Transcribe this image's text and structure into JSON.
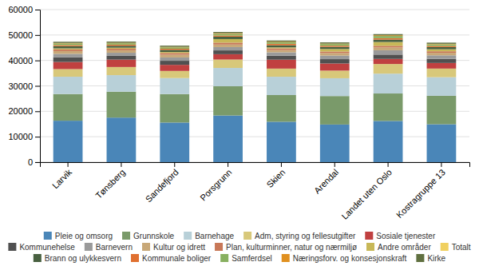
{
  "chart_data": {
    "type": "bar",
    "stacked": true,
    "categories": [
      "Larvik",
      "Tønsberg",
      "Sandefjord",
      "Porsgrunn",
      "Skien",
      "Arendal",
      "Landet uten Oslo",
      "Kostragruppe 13"
    ],
    "series": [
      {
        "name": "Pleie og omsorg",
        "color": "#4A86B8",
        "values": [
          16290,
          17518,
          15570,
          18348,
          15886,
          14800,
          16200,
          14900
        ]
      },
      {
        "name": "Grunnskole",
        "color": "#7A9A6A",
        "values": [
          10500,
          10200,
          11200,
          11500,
          10500,
          11200,
          10800,
          11200
        ]
      },
      {
        "name": "Barnehage",
        "color": "#B8D0D8",
        "values": [
          6800,
          6500,
          6300,
          7200,
          7200,
          7000,
          7800,
          7300
        ]
      },
      {
        "name": "Adm, styring og fellesutgifter",
        "color": "#D8C87A",
        "values": [
          3000,
          3200,
          2800,
          3300,
          3200,
          3000,
          3800,
          3400
        ]
      },
      {
        "name": "Sosiale tjenester",
        "color": "#C04040",
        "values": [
          2800,
          2900,
          2400,
          2100,
          3500,
          2800,
          2000,
          2200
        ]
      },
      {
        "name": "Kommunehelse",
        "color": "#505050",
        "values": [
          1800,
          1500,
          1600,
          1500,
          1600,
          1700,
          1700,
          1600
        ]
      },
      {
        "name": "Barnevern",
        "color": "#9A9A9A",
        "values": [
          1400,
          1200,
          1300,
          1300,
          1300,
          1400,
          1700,
          1400
        ]
      },
      {
        "name": "Kultur og idrett",
        "color": "#C8A878",
        "values": [
          1100,
          1000,
          1100,
          1000,
          900,
          1000,
          1100,
          1000
        ]
      },
      {
        "name": "Plan, kulturminner, natur og nærmiljø",
        "color": "#C87858",
        "values": [
          650,
          600,
          650,
          750,
          650,
          600,
          650,
          600
        ]
      },
      {
        "name": "Andre områder",
        "color": "#C8B858",
        "values": [
          400,
          400,
          400,
          1400,
          400,
          1000,
          1500,
          800
        ]
      },
      {
        "name": "Totalt",
        "color": "#F0D060",
        "values": [
          0,
          0,
          0,
          0,
          0,
          0,
          0,
          0
        ]
      },
      {
        "name": "Brann og ulykkesvern",
        "color": "#486040",
        "values": [
          850,
          750,
          850,
          950,
          850,
          850,
          950,
          850
        ]
      },
      {
        "name": "Kommunale boliger",
        "color": "#E07030",
        "values": [
          450,
          450,
          450,
          450,
          550,
          450,
          550,
          450
        ]
      },
      {
        "name": "Samferdsel",
        "color": "#88B060",
        "values": [
          650,
          550,
          550,
          650,
          650,
          650,
          850,
          650
        ]
      },
      {
        "name": "Næringsforv. og konsesjonskraft",
        "color": "#E09020",
        "values": [
          180,
          180,
          180,
          280,
          180,
          180,
          280,
          180
        ]
      },
      {
        "name": "Kirke",
        "color": "#607040",
        "values": [
          470,
          470,
          470,
          470,
          470,
          470,
          470,
          470
        ]
      }
    ],
    "ylim": [
      0,
      60000
    ],
    "yticks": [
      0,
      10000,
      20000,
      30000,
      40000,
      50000,
      60000
    ],
    "grid": true,
    "legend": "bottom"
  }
}
